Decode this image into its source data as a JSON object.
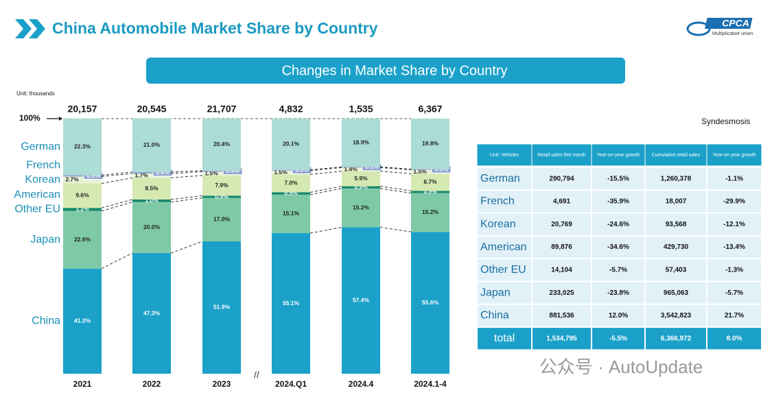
{
  "header": {
    "title": "China Automobile Market Share by Country",
    "logo": "CPCA",
    "logo_subtitle": "Multiplicative union",
    "banner": "Changes in Market Share by Country"
  },
  "chart_data": {
    "type": "stacked-bar",
    "unit": "Unit: thousands",
    "categories": [
      "2021",
      "2022",
      "2023",
      "2024.Q1",
      "2024.4",
      "2024.1-4"
    ],
    "totals": {
      "values": [
        20157,
        20545,
        21707,
        4832,
        1535,
        6367
      ],
      "value_labels": [
        "20,157",
        "20,545",
        "21,707",
        "4,832",
        "1,535",
        "6,367"
      ]
    },
    "ylim": [
      0,
      100
    ],
    "yticks": [
      {
        "value": 100,
        "label": "100%"
      }
    ],
    "series": [
      {
        "name": "China",
        "color": "#1ba1c9",
        "values": [
          41.2,
          47.3,
          51.9,
          55.1,
          57.4,
          55.6
        ],
        "value_labels": [
          "41.2%",
          "47.3%",
          "51.9%",
          "55.1%",
          "57.4%",
          "55.6%"
        ]
      },
      {
        "name": "Japan",
        "color": "#7fcaa6",
        "values": [
          22.6,
          20.0,
          17.0,
          15.1,
          15.2,
          15.2
        ],
        "value_labels": [
          "22.6%",
          "20.0%",
          "17.0%",
          "15.1%",
          "15.2%",
          "15.2%"
        ]
      },
      {
        "name": "Other EU",
        "color": "#15896c",
        "values": [
          1.2,
          1.0,
          0.9,
          0.9,
          0.9,
          0.9
        ],
        "value_labels": [
          "1.2%",
          "1.0%",
          "0.9%",
          "0.9%",
          "0.9%",
          "0.9%"
        ]
      },
      {
        "name": "American",
        "color": "#d6e9b2",
        "values": [
          9.6,
          8.5,
          7.9,
          7.0,
          5.9,
          6.7
        ],
        "value_labels": [
          "9.6%",
          "8.5%",
          "7.9%",
          "7.0%",
          "5.9%",
          "6.7%"
        ]
      },
      {
        "name": "Korean",
        "color": "#eaf2d6",
        "values": [
          2.7,
          1.7,
          1.5,
          1.5,
          1.4,
          1.5
        ],
        "value_labels": [
          "2.7%",
          "1.7%",
          "1.5%",
          "1.5%",
          "1.4%",
          "1.5%"
        ]
      },
      {
        "name": "French",
        "color": "#8fa3cf",
        "values": [
          0.5,
          0.6,
          0.4,
          0.3,
          0.3,
          0.3
        ],
        "value_labels": [
          "0.5%",
          "0.6%",
          "0.4%",
          "0.3%",
          "0.3%",
          "0.3%"
        ]
      },
      {
        "name": "German",
        "color": "#acdcd6",
        "values": [
          22.3,
          21.0,
          20.4,
          20.1,
          18.9,
          19.8
        ],
        "value_labels": [
          "22.3%",
          "21.0%",
          "20.4%",
          "20.1%",
          "18.9%",
          "19.8%"
        ]
      }
    ]
  },
  "table": {
    "note": "Syndesmosis",
    "columns": [
      "Unit: Vehicles",
      "Retail sales this month",
      "Year-on-year growth",
      "Cumulative retail sales",
      "Year-on-year growth"
    ],
    "rows": [
      [
        "German",
        "290,794",
        "-15.5%",
        "1,260,378",
        "-1.1%"
      ],
      [
        "French",
        "4,691",
        "-35.9%",
        "18,007",
        "-29.9%"
      ],
      [
        "Korean",
        "20,769",
        "-24.6%",
        "93,568",
        "-12.1%"
      ],
      [
        "American",
        "89,876",
        "-34.6%",
        "429,730",
        "-13.4%"
      ],
      [
        "Other EU",
        "14,104",
        "-5.7%",
        "57,403",
        "-1.3%"
      ],
      [
        "Japan",
        "233,025",
        "-23.8%",
        "965,063",
        "-5.7%"
      ],
      [
        "China",
        "881,536",
        "12.0%",
        "3,542,823",
        "21.7%"
      ],
      [
        "total",
        "1,534,795",
        "-5.5%",
        "6,366,972",
        "8.0%"
      ]
    ]
  },
  "watermark": "公众号 · AutoUpdate"
}
